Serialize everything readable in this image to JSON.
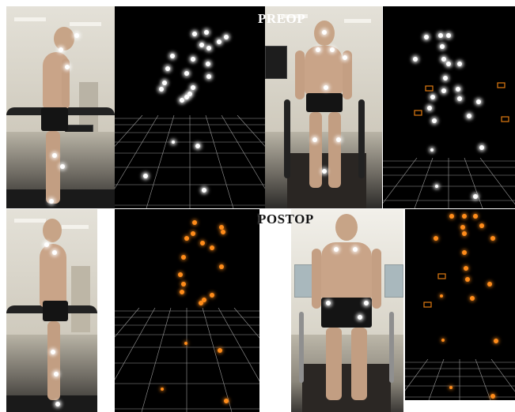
{
  "labels": {
    "preop": "PREOP",
    "postop": "POSTOP"
  },
  "colors": {
    "preop_marker": "#ffffff",
    "postop_marker": "#ff8c1a",
    "mocap_background": "#000000",
    "grid_line": "#9a9a9a"
  }
}
